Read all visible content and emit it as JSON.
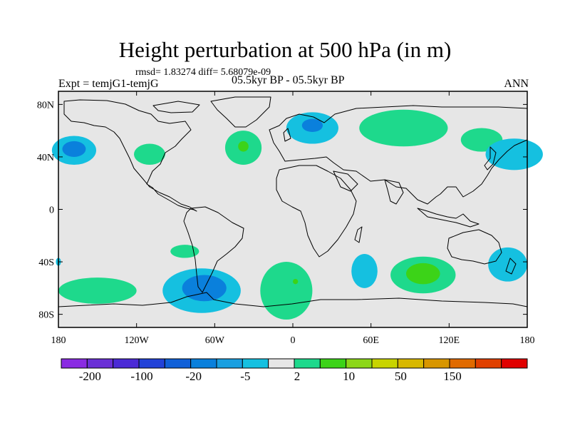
{
  "title": "Height perturbation at 500 hPa (in m)",
  "stats_line": "rmsd= 1.83274  diff= 5.68079e-09",
  "experiment_label": "Expt = temjG1-temjG",
  "period_label": "05.5kyr BP - 05.5kyr BP",
  "season_label": "ANN",
  "map": {
    "projection": "cylindrical-equidistant",
    "lon_range": [
      -180,
      180
    ],
    "lat_range": [
      -90,
      90
    ],
    "lat_ticks": [
      {
        "value": 80,
        "label": "80N"
      },
      {
        "value": 40,
        "label": "40N"
      },
      {
        "value": 0,
        "label": "0"
      },
      {
        "value": -40,
        "label": "40S"
      },
      {
        "value": -80,
        "label": "80S"
      }
    ],
    "lon_ticks": [
      {
        "value": -180,
        "label": "180"
      },
      {
        "value": -120,
        "label": "120W"
      },
      {
        "value": -60,
        "label": "60W"
      },
      {
        "value": 0,
        "label": "0"
      },
      {
        "value": 60,
        "label": "60E"
      },
      {
        "value": 120,
        "label": "120E"
      },
      {
        "value": 180,
        "label": "180"
      }
    ],
    "background_color": "#e6e6e6",
    "coastline_color": "#000000"
  },
  "colorbar": {
    "colors": [
      "#8a2be2",
      "#6a2fd6",
      "#4b2ad6",
      "#2242d8",
      "#1060d8",
      "#0a80dc",
      "#1a9fe0",
      "#15c0e0",
      "#e6e6e6",
      "#1ed98c",
      "#3cd318",
      "#8cd718",
      "#c8d400",
      "#d8b800",
      "#d89600",
      "#e06a00",
      "#e04000",
      "#e00000"
    ],
    "labels": [
      "-200",
      "-100",
      "-20",
      "-5",
      "2",
      "10",
      "50",
      "150"
    ]
  },
  "anomaly_regions": [
    {
      "name": "north-pacific-blue",
      "level": "-5",
      "color": "#15c0e0",
      "lon": -168,
      "lat": 45,
      "rlon": 17,
      "rlat": 11
    },
    {
      "name": "north-pacific-core",
      "level": "-20",
      "color": "#0a80dc",
      "lon": -168,
      "lat": 46,
      "rlon": 9,
      "rlat": 6
    },
    {
      "name": "north-america-green",
      "level": "2",
      "color": "#1ed98c",
      "lon": -110,
      "lat": 42,
      "rlon": 12,
      "rlat": 8
    },
    {
      "name": "north-atlantic-green",
      "level": "2",
      "color": "#1ed98c",
      "lon": -38,
      "lat": 47,
      "rlon": 14,
      "rlat": 13
    },
    {
      "name": "north-atlantic-core",
      "level": "10",
      "color": "#3cd318",
      "lon": -38,
      "lat": 48,
      "rlon": 4,
      "rlat": 4
    },
    {
      "name": "scandinavia-blue",
      "level": "-5",
      "color": "#15c0e0",
      "lon": 15,
      "lat": 62,
      "rlon": 20,
      "rlat": 12
    },
    {
      "name": "scandinavia-core",
      "level": "-20",
      "color": "#0a80dc",
      "lon": 15,
      "lat": 64,
      "rlon": 8,
      "rlat": 5
    },
    {
      "name": "siberia-green",
      "level": "2",
      "color": "#1ed98c",
      "lon": 85,
      "lat": 62,
      "rlon": 34,
      "rlat": 14
    },
    {
      "name": "east-asia-green",
      "level": "2",
      "color": "#1ed98c",
      "lon": 145,
      "lat": 53,
      "rlon": 16,
      "rlat": 9
    },
    {
      "name": "west-pacific-blue",
      "level": "-5",
      "color": "#15c0e0",
      "lon": 170,
      "lat": 42,
      "rlon": 22,
      "rlat": 12
    },
    {
      "name": "south-pacific-green",
      "level": "2",
      "color": "#1ed98c",
      "lon": -83,
      "lat": -32,
      "rlon": 11,
      "rlat": 5
    },
    {
      "name": "south-pacific-west-green",
      "level": "2",
      "color": "#1ed98c",
      "lon": -150,
      "lat": -62,
      "rlon": 30,
      "rlat": 10
    },
    {
      "name": "drake-passage-blue",
      "level": "-5",
      "color": "#15c0e0",
      "lon": -70,
      "lat": -62,
      "rlon": 30,
      "rlat": 17
    },
    {
      "name": "drake-passage-core",
      "level": "-20",
      "color": "#0a80dc",
      "lon": -68,
      "lat": -60,
      "rlon": 17,
      "rlat": 10
    },
    {
      "name": "south-atlantic-green",
      "level": "2",
      "color": "#1ed98c",
      "lon": -5,
      "lat": -62,
      "rlon": 20,
      "rlat": 22
    },
    {
      "name": "south-atlantic-core",
      "level": "10",
      "color": "#3cd318",
      "lon": 2,
      "lat": -55,
      "rlon": 2,
      "rlat": 2
    },
    {
      "name": "south-indian-blue",
      "level": "-5",
      "color": "#15c0e0",
      "lon": 55,
      "lat": -47,
      "rlon": 10,
      "rlat": 13
    },
    {
      "name": "south-indian-green",
      "level": "2",
      "color": "#1ed98c",
      "lon": 100,
      "lat": -50,
      "rlon": 25,
      "rlat": 14
    },
    {
      "name": "south-indian-core",
      "level": "10",
      "color": "#3cd318",
      "lon": 100,
      "lat": -49,
      "rlon": 13,
      "rlat": 8
    },
    {
      "name": "tasman-blue",
      "level": "-5",
      "color": "#15c0e0",
      "lon": 165,
      "lat": -42,
      "rlon": 15,
      "rlat": 13
    },
    {
      "name": "dateline-south-blue",
      "level": "-5",
      "color": "#15c0e0",
      "lon": -180,
      "lat": -40,
      "rlon": 2,
      "rlat": 3
    }
  ]
}
